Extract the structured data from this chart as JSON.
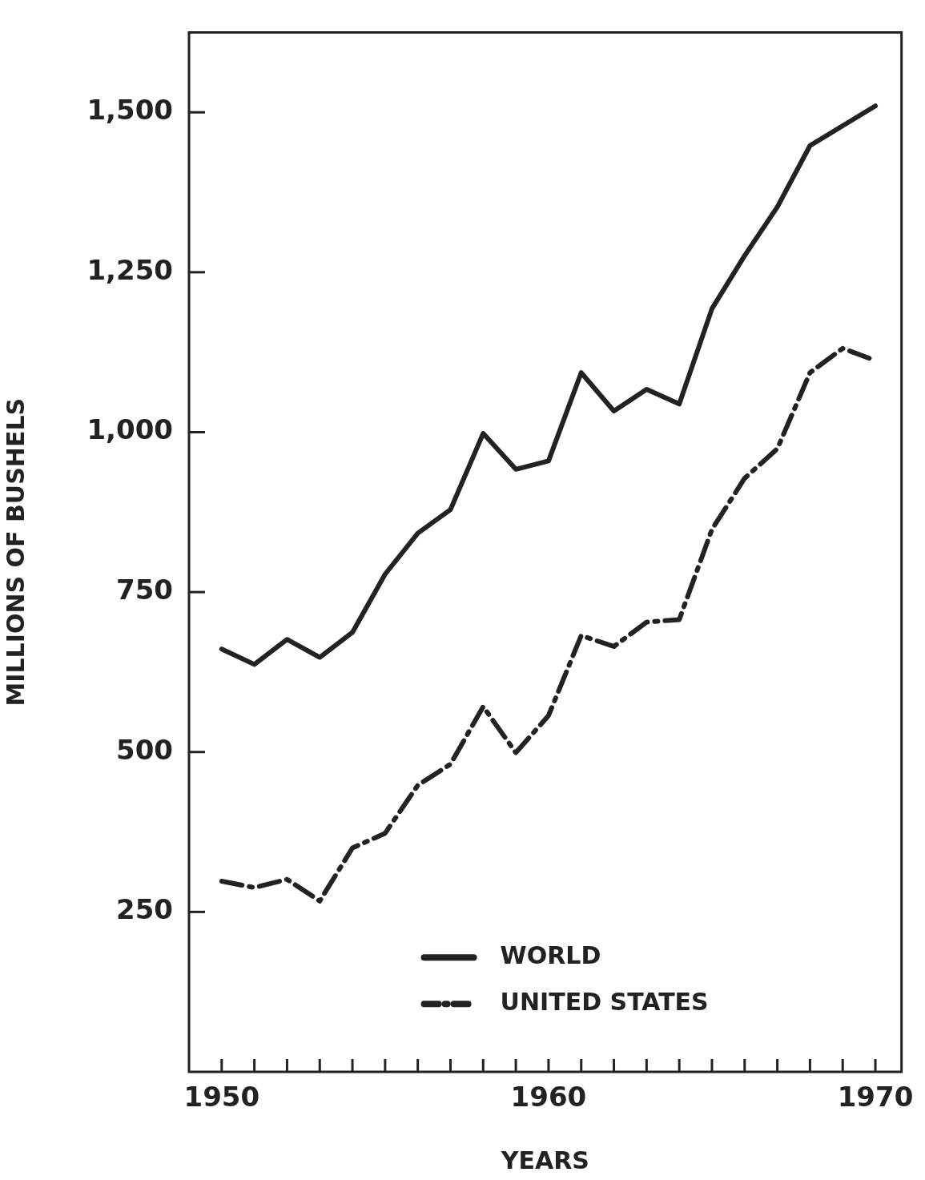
{
  "chart_data": {
    "type": "line",
    "xlabel": "YEARS",
    "ylabel": "MILLIONS OF BUSHELS",
    "x": [
      1950,
      1951,
      1952,
      1953,
      1954,
      1955,
      1956,
      1957,
      1958,
      1959,
      1960,
      1961,
      1962,
      1963,
      1964,
      1965,
      1966,
      1967,
      1968,
      1969,
      1970
    ],
    "series": [
      {
        "name": "WORLD",
        "color": "#222222",
        "line_style": "solid",
        "values": [
          661,
          637,
          676,
          648,
          687,
          778,
          842,
          879,
          998,
          942,
          955,
          1093,
          1033,
          1067,
          1044,
          1193,
          1276,
          1352,
          1448,
          1479,
          1510
        ]
      },
      {
        "name": "UNITED STATES",
        "color": "#222222",
        "line_style": "dashed",
        "values": [
          298,
          288,
          301,
          267,
          350,
          373,
          448,
          481,
          571,
          499,
          557,
          682,
          665,
          703,
          707,
          848,
          928,
          974,
          1093,
          1131,
          1112
        ]
      }
    ],
    "xlim": [
      1949,
      1970.8
    ],
    "ylim": [
      0,
      1625
    ],
    "xticks": [
      1950,
      {
        "value": 1951,
        "label": null
      },
      {
        "value": 1952,
        "label": null
      },
      {
        "value": 1953,
        "label": null
      },
      {
        "value": 1954,
        "label": null
      },
      {
        "value": 1955,
        "label": null
      },
      {
        "value": 1956,
        "label": null
      },
      {
        "value": 1957,
        "label": null
      },
      {
        "value": 1958,
        "label": null
      },
      {
        "value": 1959,
        "label": null
      },
      1960,
      {
        "value": 1961,
        "label": null
      },
      {
        "value": 1962,
        "label": null
      },
      {
        "value": 1963,
        "label": null
      },
      {
        "value": 1964,
        "label": null
      },
      {
        "value": 1965,
        "label": null
      },
      {
        "value": 1966,
        "label": null
      },
      {
        "value": 1967,
        "label": null
      },
      {
        "value": 1968,
        "label": null
      },
      {
        "value": 1969,
        "label": null
      },
      1970
    ],
    "yticks": [
      {
        "value": 250,
        "label": "250"
      },
      {
        "value": 500,
        "label": "500"
      },
      {
        "value": 750,
        "label": "750"
      },
      {
        "value": 1000,
        "label": "1,000"
      },
      {
        "value": 1250,
        "label": "1,250"
      },
      {
        "value": 1500,
        "label": "1,500"
      }
    ],
    "grid": false,
    "legend": "bottom",
    "marker": "none"
  }
}
